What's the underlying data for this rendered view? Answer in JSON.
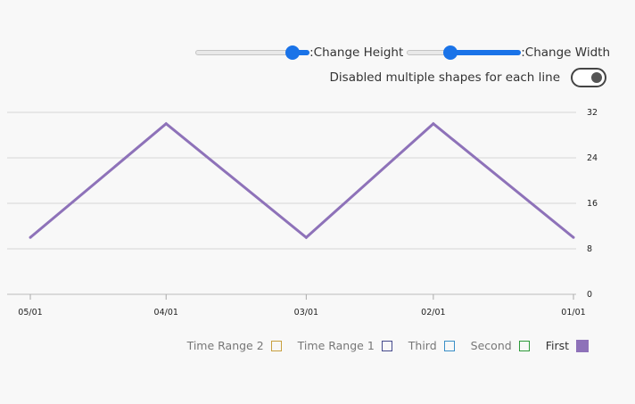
{
  "controls": {
    "height_label": ":Change Height",
    "height_value": 0.85,
    "width_label": ":Change Width",
    "width_value": 0.38,
    "toggle_label": "Disabled multiple shapes for each line",
    "toggle_on": true,
    "accent": "#1a73e8"
  },
  "chart_data": {
    "type": "line",
    "x": [
      "05/01",
      "04/01",
      "03/01",
      "02/01",
      "01/01"
    ],
    "series": [
      {
        "name": "First",
        "values": [
          10,
          30,
          10,
          30,
          10
        ],
        "color": "#8e72b9"
      }
    ],
    "yticks": [
      "32",
      "24",
      "16",
      "8",
      "0"
    ],
    "ylim": [
      0,
      32
    ],
    "y_axis_side": "right",
    "grid": true,
    "legend_position": "bottom-right"
  },
  "legend": [
    {
      "label": "Time Range 2",
      "color": "#c8a040",
      "filled": false
    },
    {
      "label": "Time Range 1",
      "color": "#454a8c",
      "filled": false
    },
    {
      "label": "Third",
      "color": "#3a8fc7",
      "filled": false
    },
    {
      "label": "Second",
      "color": "#2e9a3a",
      "filled": false
    },
    {
      "label": "First",
      "color": "#8e72b9",
      "filled": true
    }
  ]
}
